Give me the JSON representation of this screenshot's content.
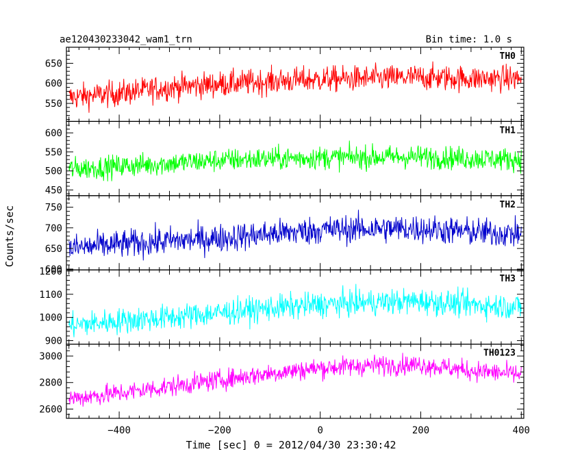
{
  "header": {
    "title": "ae120430233042_wam1_trn",
    "bin_time": "Bin time: 1.0 s"
  },
  "chart_data": {
    "type": "line",
    "xlabel": "Time [sec] 0 = 2012/04/30 23:30:42",
    "ylabel": "Counts/sec",
    "xlim": [
      -505,
      405
    ],
    "x_ticks": [
      -400,
      -200,
      0,
      200,
      400
    ],
    "x_tick_labels": [
      "−400",
      "−200",
      "0",
      "200",
      "400"
    ],
    "panels": [
      {
        "name": "TH0",
        "color": "#ff0000",
        "ylim": [
          505,
          690
        ],
        "y_ticks": [
          550,
          600,
          650
        ],
        "y_tick_labels": [
          "550",
          "600",
          "650"
        ],
        "trend": {
          "x": [
            -500,
            -400,
            -300,
            -200,
            -100,
            0,
            100,
            200,
            300,
            400
          ],
          "y": [
            565,
            575,
            590,
            598,
            605,
            610,
            612,
            615,
            612,
            612
          ]
        },
        "noise_amplitude": 32
      },
      {
        "name": "TH1",
        "color": "#00ff00",
        "ylim": [
          435,
          630
        ],
        "y_ticks": [
          450,
          500,
          550,
          600
        ],
        "y_tick_labels": [
          "450",
          "500",
          "550",
          "600"
        ],
        "trend": {
          "x": [
            -500,
            -400,
            -300,
            -200,
            -100,
            0,
            100,
            200,
            300,
            400
          ],
          "y": [
            505,
            512,
            520,
            528,
            532,
            535,
            536,
            537,
            533,
            530
          ]
        },
        "noise_amplitude": 30
      },
      {
        "name": "TH2",
        "color": "#0000cc",
        "ylim": [
          598,
          778
        ],
        "y_ticks": [
          600,
          650,
          700,
          750
        ],
        "y_tick_labels": [
          "600",
          "650",
          "700",
          "750"
        ],
        "trend": {
          "x": [
            -500,
            -400,
            -300,
            -200,
            -100,
            0,
            100,
            200,
            300,
            400
          ],
          "y": [
            650,
            660,
            668,
            675,
            685,
            695,
            698,
            698,
            690,
            685
          ]
        },
        "noise_amplitude": 34
      },
      {
        "name": "TH3",
        "color": "#00ffff",
        "ylim": [
          885,
          1205
        ],
        "y_ticks": [
          900,
          1000,
          1100,
          1200
        ],
        "y_tick_labels": [
          "900",
          "1000",
          "1100",
          "1200"
        ],
        "trend": {
          "x": [
            -500,
            -400,
            -300,
            -200,
            -100,
            0,
            100,
            200,
            300,
            400
          ],
          "y": [
            965,
            985,
            1000,
            1020,
            1040,
            1055,
            1065,
            1070,
            1055,
            1045
          ]
        },
        "noise_amplitude": 55
      },
      {
        "name": "TH0123",
        "color": "#ff00ff",
        "ylim": [
          2530,
          3090
        ],
        "y_ticks": [
          2600,
          2800,
          3000
        ],
        "y_tick_labels": [
          "2600",
          "2800",
          "3000"
        ],
        "trend": {
          "x": [
            -500,
            -400,
            -300,
            -200,
            -100,
            0,
            100,
            200,
            300,
            400
          ],
          "y": [
            2680,
            2720,
            2770,
            2820,
            2870,
            2910,
            2930,
            2935,
            2890,
            2860
          ]
        },
        "noise_amplitude": 75
      }
    ]
  }
}
